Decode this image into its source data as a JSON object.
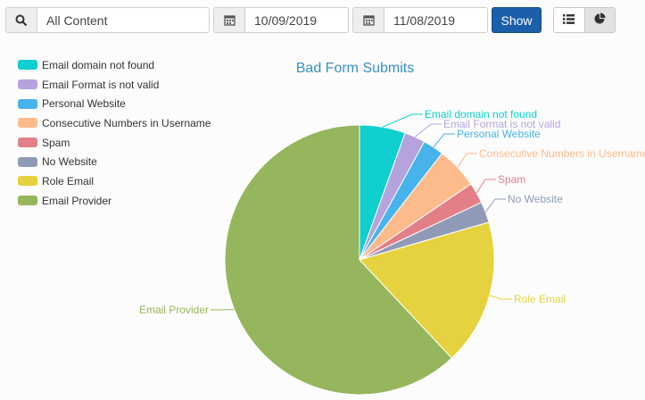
{
  "toolbar": {
    "search_value": "All Content",
    "start_date": "10/09/2019",
    "end_date": "11/08/2019",
    "show_label": "Show"
  },
  "icons": {
    "search": "search-icon",
    "calendar": "calendar-icon",
    "list": "list-icon",
    "pie": "pie-chart-icon"
  },
  "chart_data": {
    "type": "pie",
    "title": "Bad Form Submits",
    "legend_position": "top-left",
    "categories": [
      "Email domain not found",
      "Email Format is not valid",
      "Personal Website",
      "Consecutive Numbers in Username",
      "Spam",
      "No Website",
      "Role Email",
      "Email Provider"
    ],
    "values": [
      5.5,
      2.5,
      2.5,
      5.0,
      2.5,
      2.5,
      17.5,
      62.0
    ],
    "colors": [
      "#0fcfcf",
      "#b4a3dc",
      "#47b3ea",
      "#fdba8a",
      "#e37f87",
      "#8f9bb6",
      "#e6d23e",
      "#95b65c"
    ]
  }
}
